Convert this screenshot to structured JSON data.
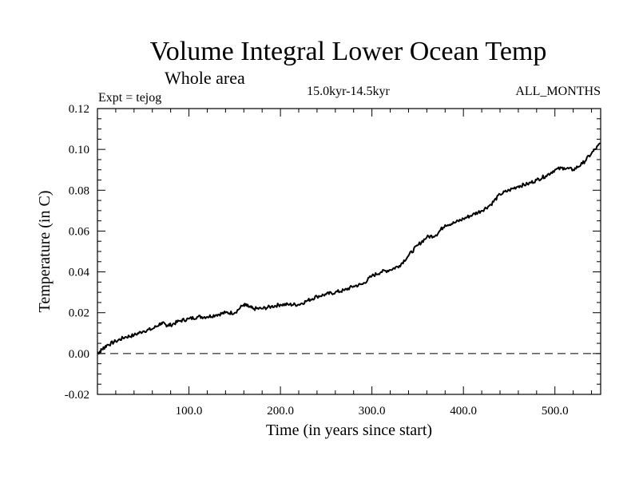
{
  "chart_data": {
    "type": "line",
    "title": "Volume Integral Lower Ocean Temp",
    "subtitle": "Whole area",
    "expt_label": "Expt = tejog",
    "period_label": "15.0kyr-14.5kyr",
    "months_label": "ALL_MONTHS",
    "xlabel": "Time (in years since start)",
    "ylabel": "Temperature (in C)",
    "xlim": [
      0,
      550
    ],
    "ylim": [
      -0.02,
      0.12
    ],
    "x_ticks": [
      {
        "value": 100,
        "label": "100.0"
      },
      {
        "value": 200,
        "label": "200.0"
      },
      {
        "value": 300,
        "label": "300.0"
      },
      {
        "value": 400,
        "label": "400.0"
      },
      {
        "value": 500,
        "label": "500.0"
      }
    ],
    "y_ticks": [
      {
        "value": -0.02,
        "label": "-0.02"
      },
      {
        "value": 0.0,
        "label": "0.00"
      },
      {
        "value": 0.02,
        "label": "0.02"
      },
      {
        "value": 0.04,
        "label": "0.04"
      },
      {
        "value": 0.06,
        "label": "0.06"
      },
      {
        "value": 0.08,
        "label": "0.08"
      },
      {
        "value": 0.1,
        "label": "0.10"
      },
      {
        "value": 0.12,
        "label": "0.12"
      }
    ],
    "reference_line": {
      "y": 0.0,
      "style": "dashed"
    },
    "series": [
      {
        "name": "Volume Integral Lower Ocean Temp",
        "x": [
          0,
          5,
          10,
          20,
          30,
          40,
          50,
          60,
          70,
          75,
          80,
          90,
          100,
          110,
          120,
          130,
          140,
          150,
          160,
          165,
          170,
          180,
          190,
          200,
          210,
          220,
          230,
          240,
          250,
          260,
          270,
          280,
          290,
          300,
          310,
          320,
          330,
          340,
          350,
          360,
          370,
          380,
          390,
          400,
          410,
          420,
          430,
          440,
          450,
          460,
          470,
          480,
          490,
          500,
          510,
          520,
          530,
          540,
          550
        ],
        "values": [
          0.0,
          0.002,
          0.004,
          0.006,
          0.008,
          0.009,
          0.011,
          0.012,
          0.015,
          0.014,
          0.014,
          0.016,
          0.017,
          0.018,
          0.018,
          0.019,
          0.02,
          0.02,
          0.024,
          0.023,
          0.022,
          0.022,
          0.023,
          0.024,
          0.024,
          0.024,
          0.026,
          0.028,
          0.029,
          0.03,
          0.031,
          0.033,
          0.034,
          0.038,
          0.04,
          0.041,
          0.043,
          0.048,
          0.053,
          0.057,
          0.058,
          0.063,
          0.064,
          0.066,
          0.068,
          0.07,
          0.073,
          0.078,
          0.08,
          0.082,
          0.083,
          0.085,
          0.087,
          0.09,
          0.091,
          0.09,
          0.093,
          0.098,
          0.103
        ]
      }
    ]
  }
}
